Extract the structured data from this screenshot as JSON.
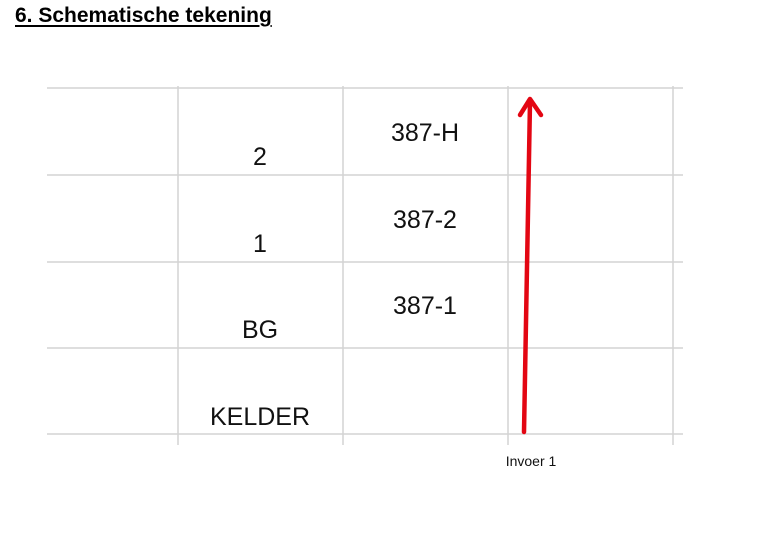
{
  "section": {
    "title": "6. Schematische tekening"
  },
  "floors": [
    "2",
    "1",
    "BG",
    "KELDER"
  ],
  "meters": [
    "387-H",
    "387-2",
    "387-1"
  ],
  "feed": {
    "label": "Invoer 1",
    "arrow_color": "#e30613"
  },
  "colors": {
    "grid_line": "#d4d4d4",
    "text": "#111111"
  },
  "icons": {
    "feed_arrow": "arrow-up-icon"
  }
}
